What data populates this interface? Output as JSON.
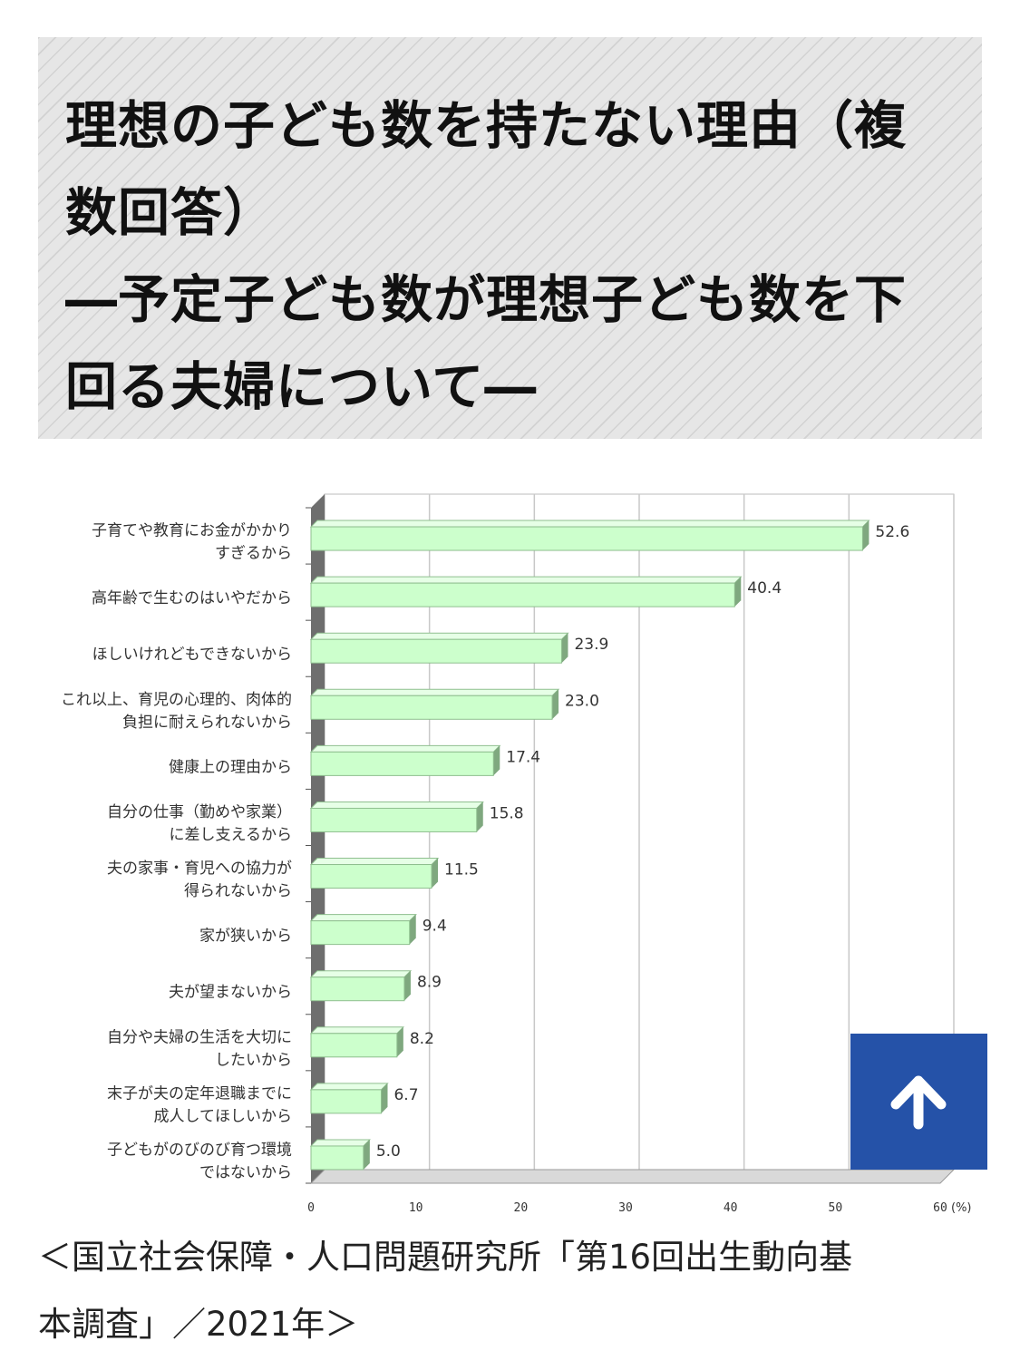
{
  "title": {
    "line1": "理想の子ども数を持たない理由（複",
    "line2": "数回答）",
    "line3": "―予定子ども数が理想子ども数を下",
    "line4": "回る夫婦について―"
  },
  "source": {
    "line1": "＜国立社会保障・人口問題研究所「第16回出生動向基",
    "line2": "本調査」／2021年＞"
  },
  "back_to_top": {
    "icon": "arrow-up-icon"
  },
  "chart_data": {
    "type": "bar",
    "orientation": "horizontal",
    "categories": [
      [
        "子育てや教育にお金がかかり",
        "すぎるから"
      ],
      [
        "高年齢で生むのはいやだから"
      ],
      [
        "ほしいけれどもできないから"
      ],
      [
        "これ以上、育児の心理的、肉体的",
        "負担に耐えられないから"
      ],
      [
        "健康上の理由から"
      ],
      [
        "自分の仕事（勤めや家業）",
        "に差し支えるから"
      ],
      [
        "夫の家事・育児への協力が",
        "得られないから"
      ],
      [
        "家が狭いから"
      ],
      [
        "夫が望まないから"
      ],
      [
        "自分や夫婦の生活を大切に",
        "したいから"
      ],
      [
        "末子が夫の定年退職までに",
        "成人してほしいから"
      ],
      [
        "子どもがのびのび育つ環境",
        "ではないから"
      ]
    ],
    "values": [
      52.6,
      40.4,
      23.9,
      23.0,
      17.4,
      15.8,
      11.5,
      9.4,
      8.9,
      8.2,
      6.7,
      5.0
    ],
    "value_labels": [
      "52.6",
      "40.4",
      "23.9",
      "23.0",
      "17.4",
      "15.8",
      "11.5",
      "9.4",
      "8.9",
      "8.2",
      "6.7",
      "5.0"
    ],
    "x_ticks": [
      "0",
      "10",
      "20",
      "30",
      "40",
      "50",
      "60"
    ],
    "unit_label": "(%)",
    "xlim": [
      0,
      60
    ],
    "grid": true,
    "colors": {
      "bar": "#ccffcc",
      "bar_edge": "#8fbf8f",
      "bar_side": "#7fa87f",
      "axis_wall": "#6e6e6e",
      "grid": "#c8c8c8"
    }
  }
}
